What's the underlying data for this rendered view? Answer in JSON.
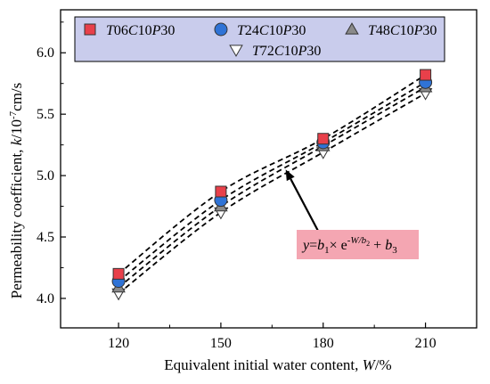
{
  "chart_data": {
    "type": "scatter",
    "title": "",
    "xlabel": "Equivalent initial water content, W/%",
    "ylabel": "Permeability coefficient, k/10-7cm/s",
    "x": [
      120,
      150,
      180,
      210
    ],
    "x_ticks": [
      "120",
      "150",
      "180",
      "210"
    ],
    "y_ticks": [
      "4.0",
      "4.5",
      "5.0",
      "5.5",
      "6.0"
    ],
    "xlim": [
      103,
      225
    ],
    "ylim": [
      3.76,
      6.35
    ],
    "grid": false,
    "legend_position": "top",
    "series": [
      {
        "name": "T06C10P30",
        "marker": "square",
        "color": "#e8404a",
        "values": [
          4.2,
          4.87,
          5.3,
          5.82
        ]
      },
      {
        "name": "T24C10P30",
        "marker": "circle",
        "color": "#2f73d6",
        "values": [
          4.14,
          4.8,
          5.27,
          5.76
        ]
      },
      {
        "name": "T48C10P30",
        "marker": "triangle-up",
        "color": "#8a8a8a",
        "values": [
          4.09,
          4.75,
          5.24,
          5.72
        ]
      },
      {
        "name": "T72C10P30",
        "marker": "triangle-down",
        "color": "#ffffff",
        "values": [
          4.04,
          4.7,
          5.19,
          5.67
        ]
      }
    ],
    "fit_curves": [
      {
        "series": "T06C10P30",
        "values": [
          4.2,
          4.87,
          5.3,
          5.82
        ]
      },
      {
        "series": "T24C10P30",
        "values": [
          4.14,
          4.8,
          5.27,
          5.76
        ]
      },
      {
        "series": "T48C10P30",
        "values": [
          4.09,
          4.75,
          5.24,
          5.72
        ]
      },
      {
        "series": "T72C10P30",
        "values": [
          4.04,
          4.7,
          5.19,
          5.67
        ]
      }
    ],
    "annotation": {
      "text": "y=b1× e-W/b2 + b3",
      "box_color": "#f4a6b2",
      "arrow_tip": [
        169,
        5.05
      ],
      "arrow_tail": [
        178.5,
        4.55
      ]
    },
    "legend_box_color": "#c9ccec"
  }
}
